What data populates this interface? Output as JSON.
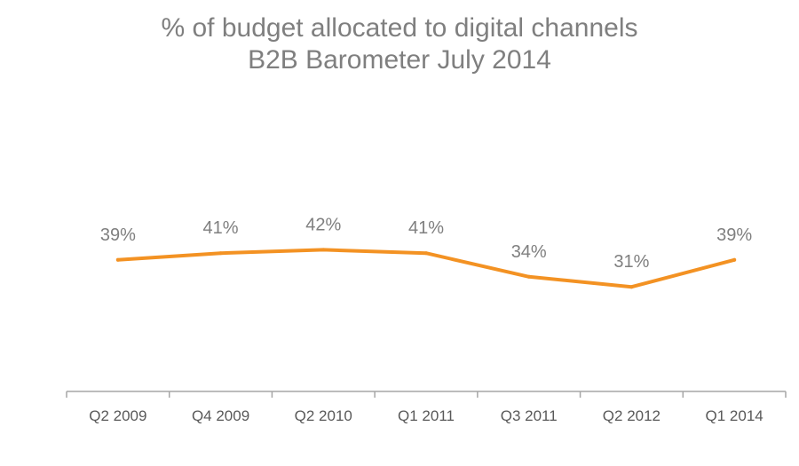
{
  "chart_data": {
    "type": "line",
    "title": "% of budget allocated to digital channels",
    "subtitle": "B2B Barometer July 2014",
    "categories": [
      "Q2 2009",
      "Q4 2009",
      "Q2 2010",
      "Q1 2011",
      "Q3 2011",
      "Q2 2012",
      "Q1 2014"
    ],
    "series": [
      {
        "values": [
          39,
          41,
          42,
          41,
          34,
          31,
          39
        ],
        "data_labels": [
          "39%",
          "41%",
          "42%",
          "41%",
          "34%",
          "31%",
          "39%"
        ],
        "color": "#f39223"
      }
    ],
    "ylim": [
      0,
      100
    ],
    "grid": false,
    "legend": "none",
    "axis_color": "#a6a6a6"
  }
}
